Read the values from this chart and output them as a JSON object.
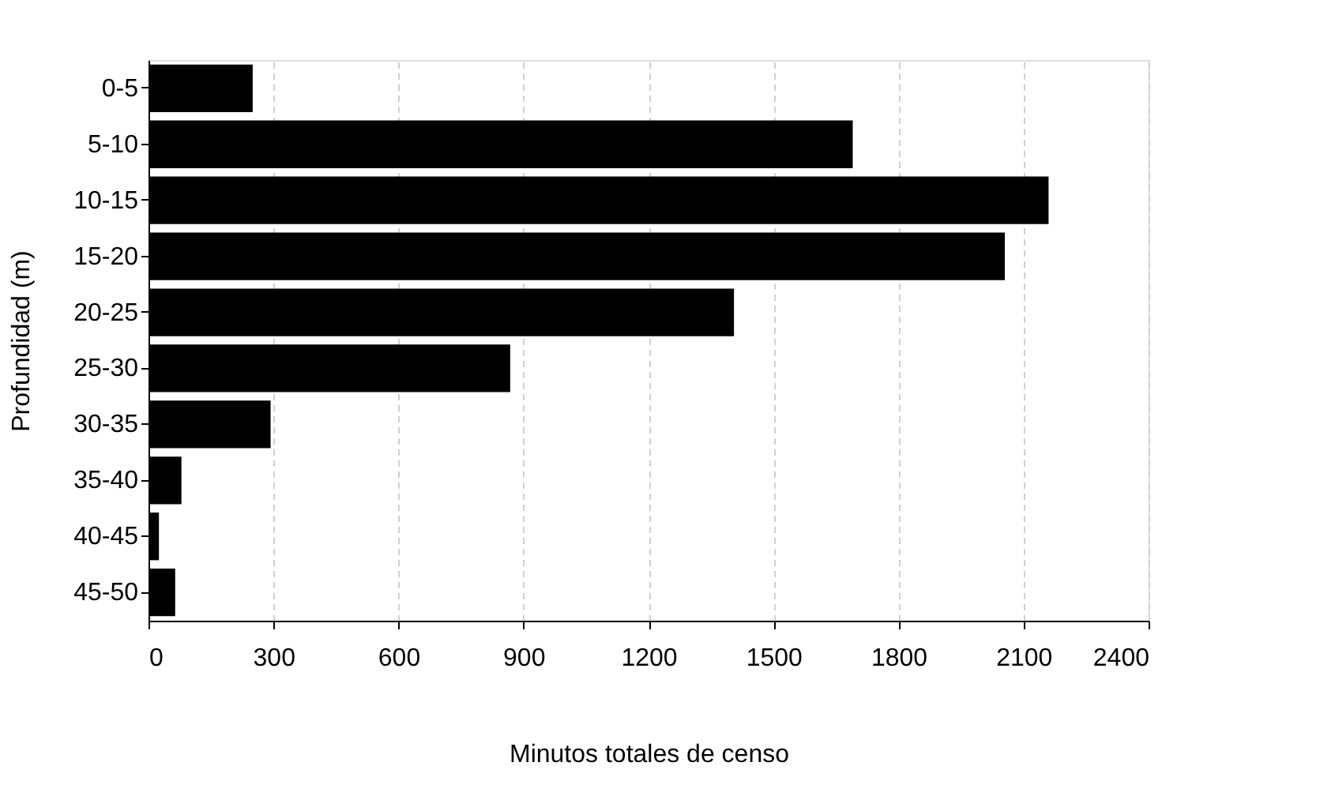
{
  "chart_data": {
    "type": "bar",
    "orientation": "horizontal",
    "xlabel": "Minutos totales de censo",
    "ylabel": "Profundidad (m)",
    "categories": [
      "0-5",
      "5-10",
      "10-15",
      "15-20",
      "20-25",
      "25-30",
      "30-35",
      "35-40",
      "40-45",
      "45-50"
    ],
    "values": [
      250,
      1690,
      2160,
      2055,
      1405,
      868,
      293,
      79,
      25,
      64
    ],
    "color": "#000000",
    "xlim": [
      0,
      2400
    ],
    "xticks": [
      0,
      300,
      600,
      900,
      1200,
      1500,
      1800,
      2100,
      2400
    ],
    "grid": "x"
  }
}
